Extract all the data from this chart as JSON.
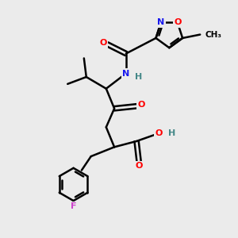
{
  "bg_color": "#ebebeb",
  "bond_color": "#000000",
  "bond_width": 1.8,
  "atom_colors": {
    "O": "#ff0000",
    "N": "#1a1aee",
    "F": "#cc44cc",
    "H": "#448888",
    "C": "#000000"
  },
  "font_size": 8.0,
  "fig_size": [
    3.0,
    3.0
  ],
  "dpi": 100
}
